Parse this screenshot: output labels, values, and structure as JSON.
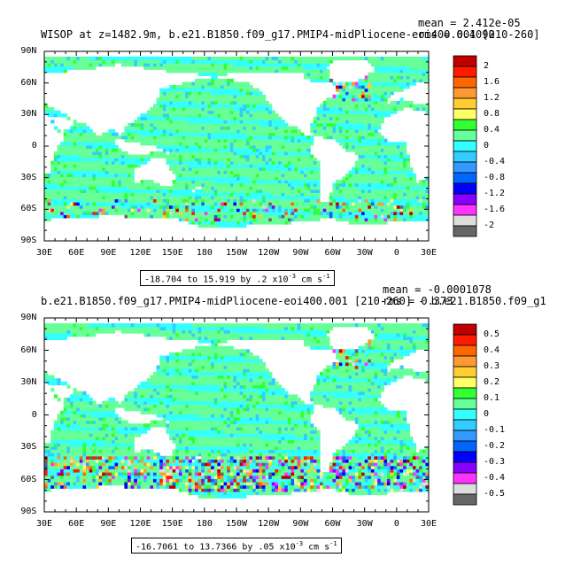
{
  "panels": [
    {
      "title": "WISOP at z=1482.9m, b.e21.B1850.f09_g17.PMIP4-midPliocene-eoi400.001 [210-260]",
      "mean_label": "mean = 2.412e-05",
      "rms_label": "rms = 0.4090",
      "lat_labels": [
        "90N",
        "60N",
        "30N",
        "0",
        "30S",
        "60S",
        "90S"
      ],
      "lon_labels": [
        "30E",
        "60E",
        "90E",
        "120E",
        "150E",
        "180",
        "150W",
        "120W",
        "90W",
        "60W",
        "30W",
        "0",
        "30E"
      ],
      "range_text": "-18.704 to 15.919 by .2 x10",
      "range_exp": "-3",
      "range_units": " cm s",
      "range_units_exp": "-1",
      "colorbar": {
        "labels": [
          "2",
          "1.6",
          "1.2",
          "0.8",
          "0.4",
          "0",
          "-0.4",
          "-0.8",
          "-1.2",
          "-1.6",
          "-2"
        ],
        "colors": [
          "#c00000",
          "#ff1a00",
          "#ff6600",
          "#ff9933",
          "#ffcc33",
          "#ffff66",
          "#33ff33",
          "#66ff99",
          "#33ffff",
          "#33ccff",
          "#3399ff",
          "#0066ff",
          "#0000ff",
          "#8800ff",
          "#ff33ff",
          "#dddddd",
          "#666666"
        ]
      }
    },
    {
      "title": "b.e21.B1850.f09_g17.PMIP4-midPliocene-eoi400.001 [210-260] - b.e21.B1850.f09_g1",
      "mean_label": "mean = -0.0001078",
      "rms_label": "rms = 0.373",
      "lat_labels": [
        "90N",
        "60N",
        "30N",
        "0",
        "30S",
        "60S",
        "90S"
      ],
      "lon_labels": [
        "30E",
        "60E",
        "90E",
        "120E",
        "150E",
        "180",
        "150W",
        "120W",
        "90W",
        "60W",
        "30W",
        "0",
        "30E"
      ],
      "range_text": "-16.7061 to 13.7366 by .05 x10",
      "range_exp": "-3",
      "range_units": " cm s",
      "range_units_exp": "-1",
      "colorbar": {
        "labels": [
          "0.5",
          "0.4",
          "0.3",
          "0.2",
          "0.1",
          "0",
          "-0.1",
          "-0.2",
          "-0.3",
          "-0.4",
          "-0.5"
        ],
        "colors": [
          "#c00000",
          "#ff1a00",
          "#ff6600",
          "#ff9933",
          "#ffcc33",
          "#ffff66",
          "#33ff33",
          "#66ff99",
          "#33ffff",
          "#33ccff",
          "#3399ff",
          "#0066ff",
          "#0000ff",
          "#8800ff",
          "#ff33ff",
          "#dddddd",
          "#666666"
        ]
      }
    }
  ]
}
